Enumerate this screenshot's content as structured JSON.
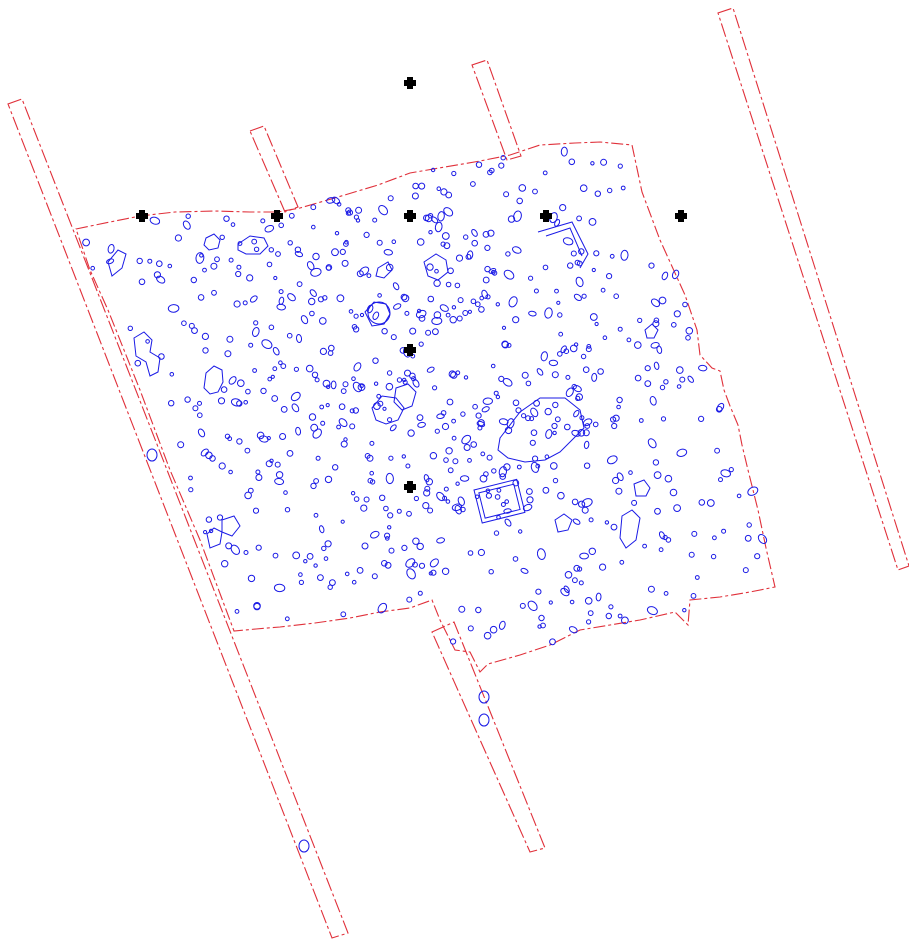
{
  "map": {
    "type": "archaeological-excavation-plan",
    "colors": {
      "boundary": "#e0303a",
      "feature": "#1a1ae6",
      "marker": "#000000",
      "background": "#ffffff"
    },
    "layers": [
      {
        "name": "excavation-boundary",
        "style": "dash-dot",
        "color": "#e0303a"
      },
      {
        "name": "trenches",
        "style": "dash-dot",
        "color": "#e0303a",
        "count": 5
      },
      {
        "name": "features",
        "style": "solid",
        "color": "#1a1ae6"
      },
      {
        "name": "grid-markers",
        "style": "filled-cross",
        "color": "#000000",
        "count": 8
      }
    ],
    "labels": []
  }
}
